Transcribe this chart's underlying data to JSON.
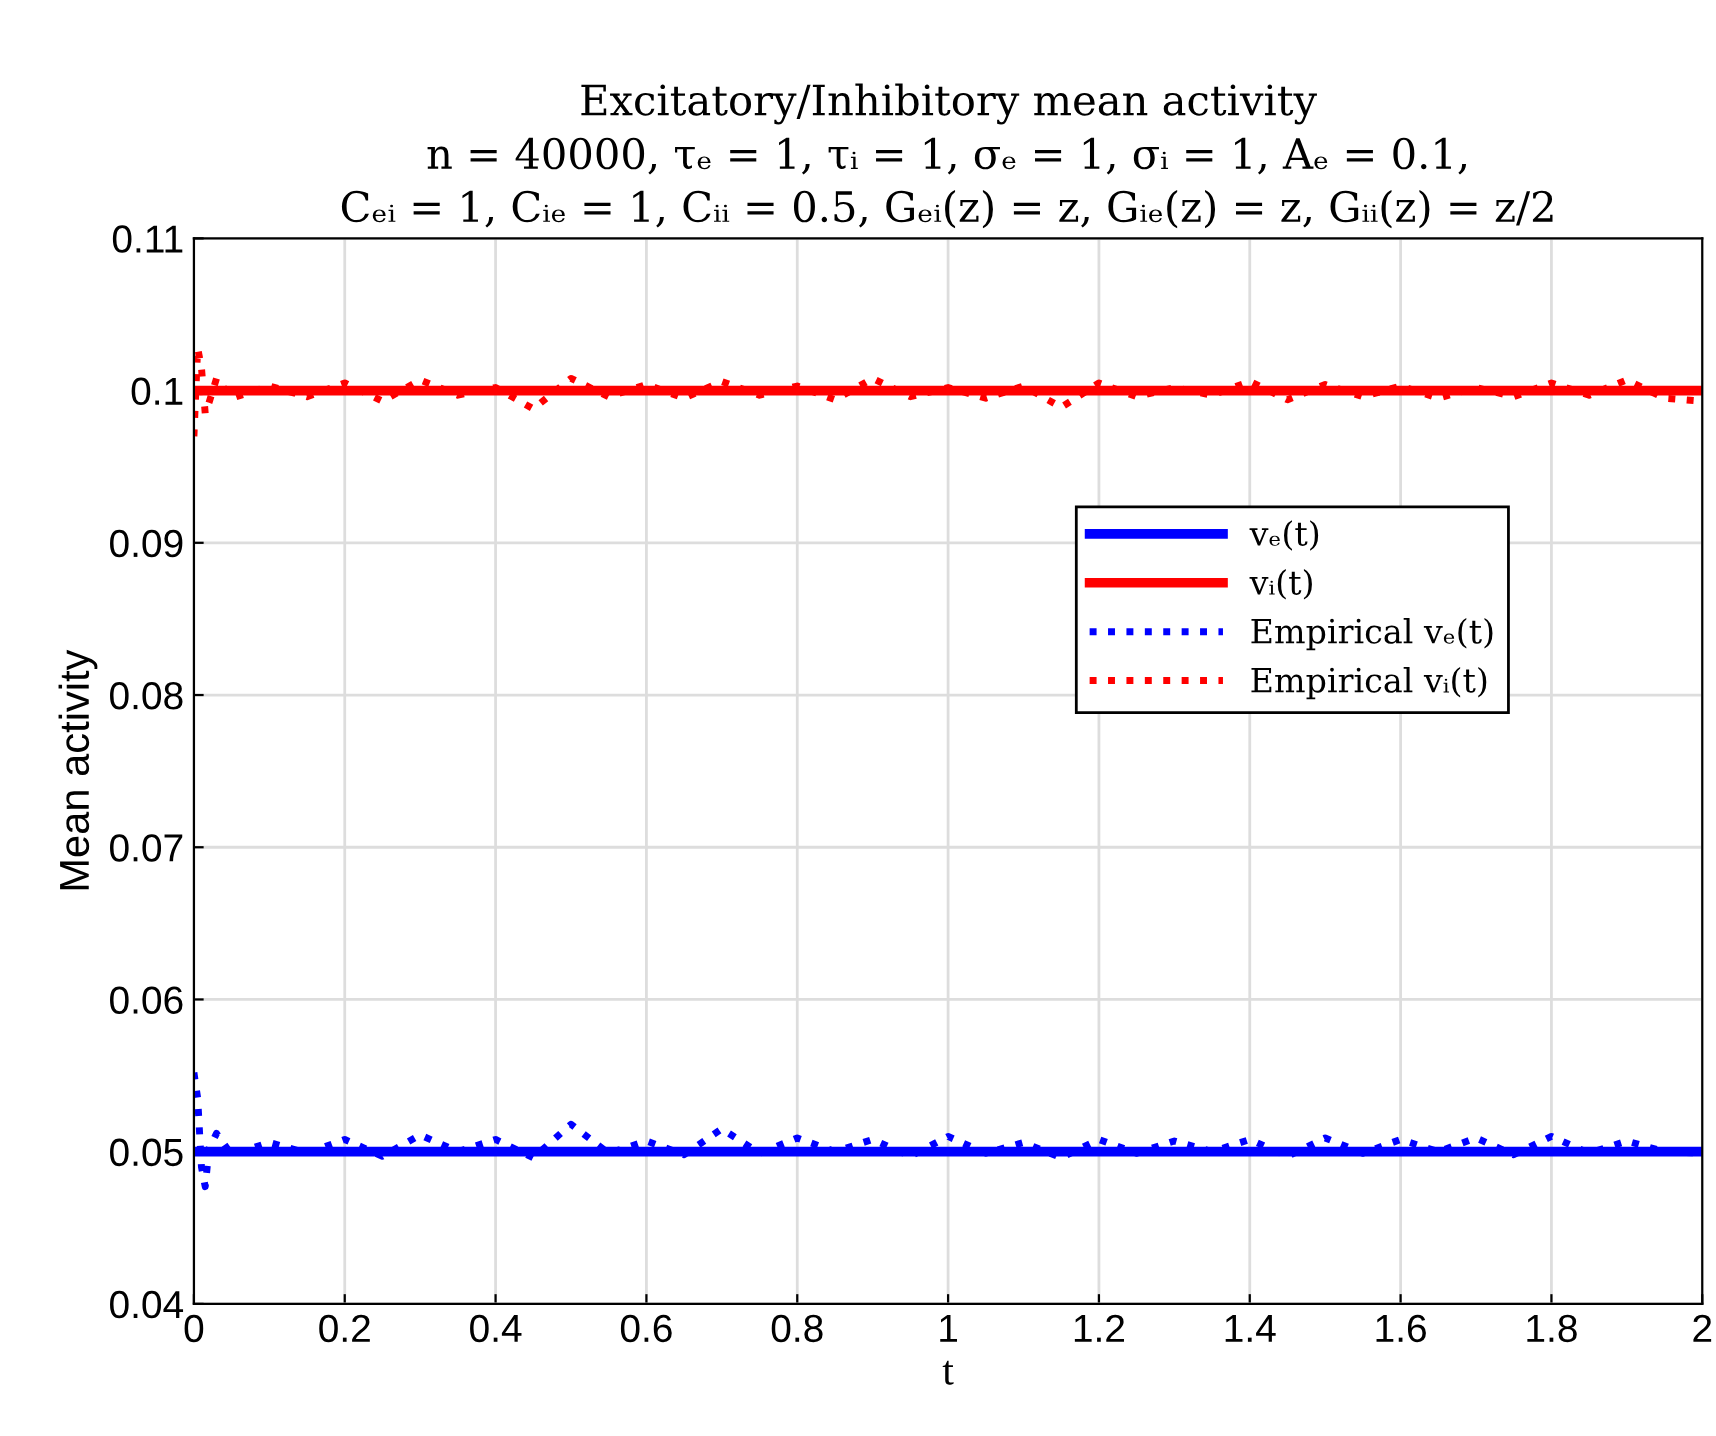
{
  "chart_data": {
    "type": "line",
    "title": "Excitatory/Inhibitory mean activity\nn = 40000, τₑ = 1, τᵢ = 1, σₑ = 1, σᵢ = 1, Aₑ = 0.1,\nCₑᵢ = 1, Cᵢₑ = 1, Cᵢᵢ = 0.5, Gₑᵢ(z) = z, Gᵢₑ(z) = z, Gᵢᵢ(z) = z/2",
    "xlabel": "t",
    "ylabel": "Mean activity",
    "xlim": [
      0,
      2
    ],
    "xticks": [
      0,
      0.2,
      0.4,
      0.6,
      0.8,
      1,
      1.2,
      1.4,
      1.6,
      1.8,
      2
    ],
    "ylim": [
      0.04,
      0.11
    ],
    "yticks": [
      0.04,
      0.05,
      0.06,
      0.07,
      0.08,
      0.09,
      0.1,
      0.11
    ],
    "grid": true,
    "legend": "right",
    "series": [
      {
        "name": "vₑ(t)",
        "color": "#0000ff",
        "line_style": "solid",
        "x": [
          0,
          2
        ],
        "values": [
          0.05,
          0.05
        ]
      },
      {
        "name": "vᵢ(t)",
        "color": "#ff0000",
        "line_style": "solid",
        "x": [
          0,
          2
        ],
        "values": [
          0.1,
          0.1
        ]
      },
      {
        "name": "Empirical vₑ(t)",
        "color": "#0000ff",
        "line_style": "dotted",
        "x": [
          0,
          0.005,
          0.01,
          0.015,
          0.02,
          0.03,
          0.05,
          0.1,
          0.15,
          0.2,
          0.25,
          0.3,
          0.35,
          0.4,
          0.45,
          0.5,
          0.55,
          0.6,
          0.65,
          0.7,
          0.75,
          0.8,
          0.85,
          0.9,
          0.95,
          1,
          1.05,
          1.1,
          1.15,
          1.2,
          1.25,
          1.3,
          1.35,
          1.4,
          1.45,
          1.5,
          1.55,
          1.6,
          1.65,
          1.7,
          1.75,
          1.8,
          1.85,
          1.9,
          1.95,
          2
        ],
        "values": [
          0.0552,
          0.0535,
          0.049,
          0.0477,
          0.0502,
          0.0512,
          0.0498,
          0.0506,
          0.0499,
          0.0508,
          0.0497,
          0.0511,
          0.05,
          0.0508,
          0.0496,
          0.0518,
          0.0499,
          0.0507,
          0.0498,
          0.0515,
          0.0499,
          0.0509,
          0.05,
          0.0508,
          0.0497,
          0.051,
          0.0499,
          0.0506,
          0.0496,
          0.0508,
          0.0499,
          0.0507,
          0.05,
          0.0508,
          0.0497,
          0.0509,
          0.0499,
          0.0508,
          0.05,
          0.0509,
          0.0498,
          0.051,
          0.0499,
          0.0507,
          0.05,
          0.0499
        ]
      },
      {
        "name": "Empirical vᵢ(t)",
        "color": "#ff0000",
        "line_style": "dotted",
        "x": [
          0,
          0.005,
          0.01,
          0.015,
          0.02,
          0.03,
          0.05,
          0.1,
          0.15,
          0.2,
          0.25,
          0.3,
          0.35,
          0.4,
          0.45,
          0.5,
          0.55,
          0.6,
          0.65,
          0.7,
          0.75,
          0.8,
          0.85,
          0.9,
          0.95,
          1,
          1.05,
          1.1,
          1.15,
          1.2,
          1.25,
          1.3,
          1.35,
          1.4,
          1.45,
          1.5,
          1.55,
          1.6,
          1.65,
          1.7,
          1.75,
          1.8,
          1.85,
          1.9,
          1.95,
          2
        ],
        "values": [
          0.097,
          0.1028,
          0.1015,
          0.0985,
          0.0992,
          0.1008,
          0.0995,
          0.1003,
          0.0996,
          0.1005,
          0.0993,
          0.1007,
          0.0997,
          0.1002,
          0.0988,
          0.1008,
          0.0996,
          0.1004,
          0.0995,
          0.1006,
          0.0997,
          0.1003,
          0.0994,
          0.1008,
          0.0996,
          0.1002,
          0.0995,
          0.1003,
          0.0989,
          0.1005,
          0.0996,
          0.1002,
          0.0997,
          0.1006,
          0.0994,
          0.1004,
          0.0996,
          0.1003,
          0.0995,
          0.1002,
          0.0996,
          0.1005,
          0.0997,
          0.1007,
          0.0995,
          0.0993
        ]
      }
    ]
  }
}
